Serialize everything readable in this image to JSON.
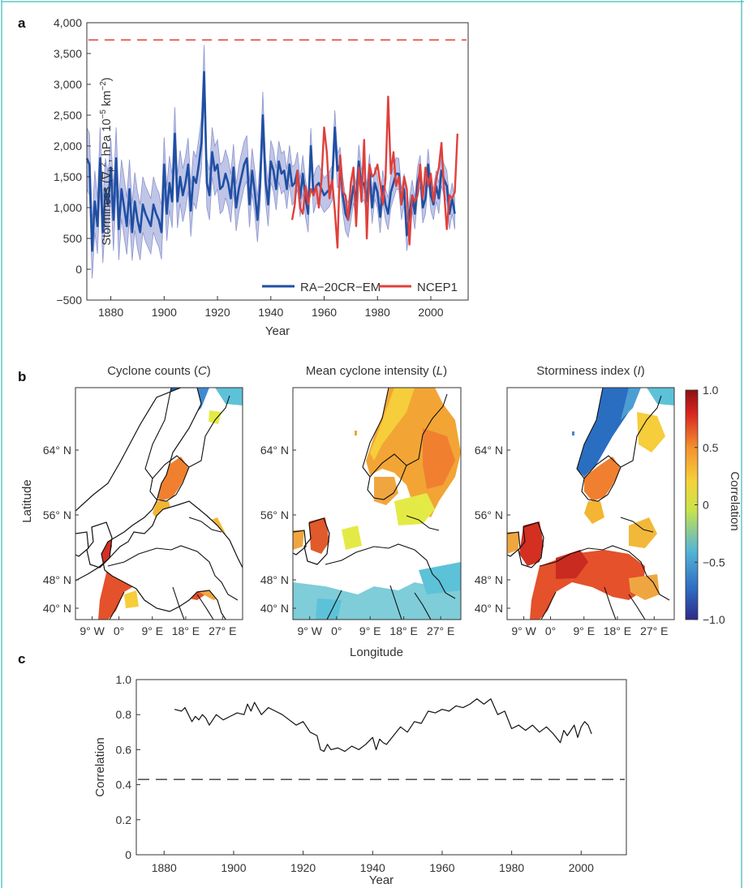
{
  "panels": {
    "a": "a",
    "b": "b",
    "c": "c"
  },
  "chart_data": [
    {
      "panel": "a",
      "type": "line",
      "xlabel": "Year",
      "ylabel_main": "Storminess (∇",
      "ylabel_sub": "p",
      "ylabel_sup": "2",
      "ylabel_rest": ", hPa 10",
      "ylabel_exp": "−5",
      "ylabel_unit": " km",
      "ylabel_exp2": "−2",
      "ylabel_close": ")",
      "xlim": [
        1871,
        2014
      ],
      "ylim": [
        -500,
        4000
      ],
      "xticks": [
        "1880",
        "1900",
        "1920",
        "1940",
        "1960",
        "1980",
        "2000"
      ],
      "xtick_values": [
        1880,
        1900,
        1920,
        1940,
        1960,
        1980,
        2000
      ],
      "yticks": [
        "4,000",
        "3,500",
        "3,000",
        "2,500",
        "2,000",
        "1,500",
        "1,000",
        "500",
        "0",
        "−500"
      ],
      "ytick_values": [
        4000,
        3500,
        3000,
        2500,
        2000,
        1500,
        1000,
        500,
        0,
        -500
      ],
      "reference_line": {
        "y": 3720,
        "color": "#e0403b"
      },
      "legend_placement": "bottom-right",
      "series": [
        {
          "name": "RA−20CR−EM",
          "color": "#1f4fa3",
          "band_color": "#b8bfe3",
          "x_start": 1871,
          "values": [
            1800,
            1700,
            300,
            1100,
            700,
            1800,
            600,
            1300,
            1050,
            1650,
            800,
            1800,
            650,
            1300,
            1000,
            700,
            1300,
            600,
            1100,
            800,
            600,
            1050,
            900,
            800,
            700,
            1050,
            900,
            800,
            600,
            1700,
            900,
            1400,
            1100,
            2200,
            1100,
            1500,
            1200,
            1400,
            1700,
            950,
            1500,
            1400,
            1700,
            2050,
            3200,
            1400,
            1200,
            1900,
            1600,
            1700,
            1300,
            1350,
            1550,
            1400,
            1150,
            1650,
            1000,
            1300,
            1500,
            1700,
            1800,
            1050,
            1600,
            1250,
            800,
            1400,
            2500,
            1450,
            1050,
            1750,
            1600,
            1300,
            1750,
            1550,
            1600,
            1300,
            1700,
            1350,
            1400,
            1600,
            1150,
            1550,
            1150,
            900,
            2000,
            1200,
            1350,
            1400,
            1300,
            1200,
            1250,
            1300,
            1400,
            2300,
            1600,
            1700,
            1200,
            900,
            800,
            1050,
            1350,
            1100,
            1750,
            1350,
            1400,
            1100,
            1600,
            1000,
            1400,
            1250,
            850,
            1350,
            1050,
            900,
            1250,
            1400,
            1550,
            1550,
            1050,
            1300,
            550,
            900,
            1200,
            900,
            1400,
            1600,
            1000,
            1150,
            1700,
            1200,
            1050,
            1350,
            1150,
            1600,
            1450,
            1350,
            900,
            1150,
            900
          ],
          "spread": [
            500,
            500,
            450,
            500,
            450,
            500,
            500,
            500,
            500,
            480,
            500,
            500,
            500,
            480,
            480,
            460,
            480,
            460,
            470,
            460,
            450,
            450,
            450,
            450,
            450,
            450,
            440,
            440,
            440,
            440,
            440,
            440,
            430,
            430,
            430,
            430,
            430,
            430,
            430,
            420,
            420,
            420,
            420,
            420,
            440,
            400,
            400,
            400,
            400,
            400,
            400,
            400,
            390,
            390,
            390,
            380,
            380,
            380,
            380,
            370,
            370,
            370,
            360,
            360,
            360,
            360,
            380,
            350,
            350,
            340,
            340,
            340,
            330,
            330,
            320,
            320,
            310,
            310,
            300,
            300,
            300,
            300,
            300,
            300,
            290,
            290,
            290,
            290,
            290,
            280,
            280,
            280,
            280,
            280,
            280,
            280,
            280,
            280,
            280,
            270,
            270,
            270,
            270,
            270,
            270,
            270,
            270,
            260,
            260,
            260,
            260,
            260,
            260,
            260,
            260,
            260,
            260,
            250,
            250,
            250,
            250,
            250,
            250,
            250,
            250,
            250,
            250,
            250,
            250,
            250,
            250,
            250,
            250,
            250,
            250,
            250,
            250,
            250,
            250,
            250,
            250
          ]
        },
        {
          "name": "NCEP1",
          "color": "#e0403b",
          "x_start": 1948,
          "values": [
            800,
            1050,
            1600,
            1000,
            900,
            1350,
            1050,
            1300,
            1200,
            1350,
            1000,
            1450,
            2300,
            1900,
            1150,
            1450,
            950,
            350,
            1850,
            1250,
            1200,
            800,
            1400,
            1650,
            700,
            1650,
            1100,
            2100,
            500,
            1700,
            1500,
            1550,
            1700,
            1400,
            1050,
            1450,
            2800,
            1550,
            1900,
            1350,
            1500,
            1050,
            1500,
            1300,
            400,
            1200,
            1100,
            1200,
            1700,
            1150,
            1650,
            1350,
            1550,
            1100,
            1450,
            1650,
            2050,
            1250,
            650,
            1200,
            1150,
            1250,
            2200
          ]
        }
      ]
    },
    {
      "panel": "b",
      "type": "heatmap",
      "maps": [
        {
          "title": "Cyclone counts (",
          "title_var": "C",
          "title_close": ")"
        },
        {
          "title": "Mean cyclone intensity (",
          "title_var": "L",
          "title_close": ")"
        },
        {
          "title": "Storminess index (",
          "title_var": "I",
          "title_close": ")"
        }
      ],
      "xlabel": "Longitude",
      "ylabel": "Latitude",
      "xticks": [
        "9° W",
        "0°",
        "9° E",
        "18° E",
        "27° E"
      ],
      "yticks": [
        "64° N",
        "56° N",
        "48° N",
        "40° N"
      ],
      "colorbar_label": "Correlation",
      "colorbar_ticks": [
        "1.0",
        "0.5",
        "0",
        "−0.5",
        "−1.0"
      ],
      "colorbar_range": [
        -1,
        1
      ],
      "colormap": [
        "#2d2a8a",
        "#2f6fc4",
        "#54b6d6",
        "#c9e34a",
        "#f5d23a",
        "#f4912e",
        "#d8241f",
        "#8b1214"
      ]
    },
    {
      "panel": "c",
      "type": "line",
      "xlabel": "Year",
      "ylabel": "Correlation",
      "xlim": [
        1872,
        2013
      ],
      "ylim": [
        0,
        1.0
      ],
      "xticks": [
        "1880",
        "1900",
        "1920",
        "1940",
        "1960",
        "1980",
        "2000"
      ],
      "xtick_values": [
        1880,
        1900,
        1920,
        1940,
        1960,
        1980,
        2000
      ],
      "yticks": [
        "1.0",
        "0.8",
        "0.6",
        "0.4",
        "0.2",
        "0"
      ],
      "ytick_values": [
        1.0,
        0.8,
        0.6,
        0.4,
        0.2,
        0
      ],
      "reference_line": {
        "y": 0.43
      },
      "series": [
        {
          "color": "#111111",
          "x": [
            1883,
            1885,
            1886,
            1887,
            1888,
            1889,
            1890,
            1891,
            1892,
            1893,
            1895,
            1897,
            1899,
            1901,
            1903,
            1904,
            1905,
            1906,
            1908,
            1910,
            1912,
            1914,
            1916,
            1918,
            1920,
            1922,
            1924,
            1925,
            1926,
            1927,
            1928,
            1930,
            1932,
            1934,
            1936,
            1938,
            1940,
            1941,
            1942,
            1943,
            1944,
            1946,
            1948,
            1950,
            1952,
            1954,
            1956,
            1958,
            1960,
            1962,
            1964,
            1966,
            1968,
            1970,
            1972,
            1974,
            1976,
            1978,
            1980,
            1982,
            1984,
            1986,
            1988,
            1990,
            1992,
            1994,
            1995,
            1996,
            1998,
            1999,
            2000,
            2001,
            2002,
            2003
          ],
          "values": [
            0.83,
            0.82,
            0.84,
            0.8,
            0.76,
            0.79,
            0.77,
            0.8,
            0.78,
            0.74,
            0.8,
            0.77,
            0.79,
            0.81,
            0.8,
            0.86,
            0.82,
            0.87,
            0.8,
            0.84,
            0.82,
            0.8,
            0.77,
            0.74,
            0.76,
            0.7,
            0.68,
            0.6,
            0.59,
            0.63,
            0.6,
            0.61,
            0.59,
            0.62,
            0.6,
            0.63,
            0.67,
            0.6,
            0.66,
            0.64,
            0.63,
            0.68,
            0.73,
            0.7,
            0.76,
            0.75,
            0.82,
            0.81,
            0.83,
            0.82,
            0.85,
            0.84,
            0.86,
            0.89,
            0.86,
            0.89,
            0.8,
            0.82,
            0.72,
            0.74,
            0.71,
            0.74,
            0.7,
            0.73,
            0.69,
            0.64,
            0.71,
            0.68,
            0.74,
            0.67,
            0.73,
            0.76,
            0.74,
            0.69
          ]
        }
      ]
    }
  ]
}
